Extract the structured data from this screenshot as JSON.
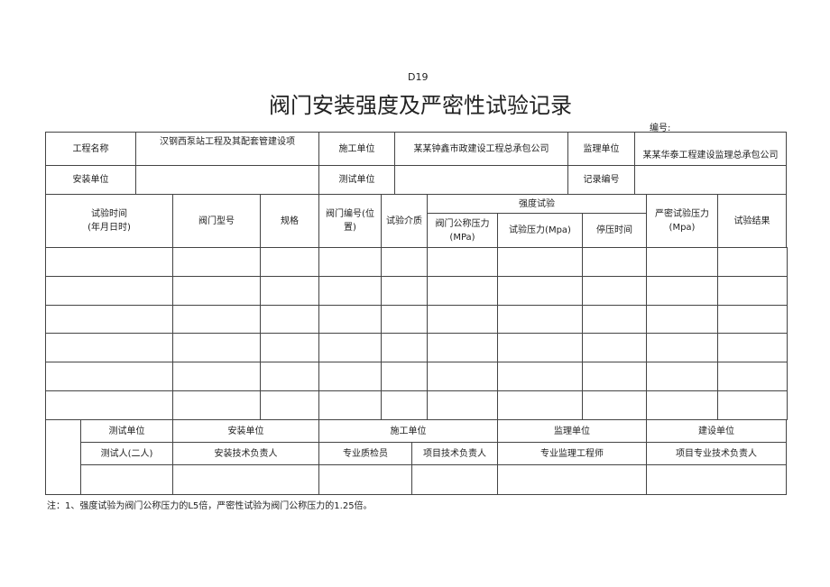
{
  "code": "D19",
  "title": "阀门安装强度及严密性试验记录",
  "number_label": "编号:",
  "info": {
    "project_name_label": "工程名称",
    "project_name": "汉钢西泵站工程及其配套管建设项",
    "construction_unit_label": "施工单位",
    "construction_unit": "某某钟鑫市政建设工程总承包公司",
    "supervision_unit_label": "监理单位",
    "supervision_unit": "某某华泰工程建设监理总承包公司",
    "installation_unit_label": "安装单位",
    "installation_unit": "",
    "testing_unit_label": "测试单位",
    "testing_unit": "",
    "record_no_label": "记录编号",
    "record_no": ""
  },
  "headers": {
    "test_time": "试验时间",
    "test_time_sub": "(年月日时)",
    "valve_model": "阀门型号",
    "spec": "规格",
    "valve_no": "阀门编号(位置)",
    "medium": "试验介质",
    "strength_test": "强度试验",
    "nominal_pressure": "阀门公称压力",
    "nominal_pressure_unit": "(MPa)",
    "test_pressure": "试验压力(Mpa)",
    "hold_time": "停压时间",
    "tightness_pressure": "严密试验压力",
    "tightness_pressure_unit": "(Mpa)",
    "result": "试验结果"
  },
  "rows": [
    [],
    [],
    [],
    [],
    [],
    []
  ],
  "signatures": {
    "units": [
      "测试单位",
      "安装单位",
      "施工单位",
      "监理单位",
      "建设单位"
    ],
    "roles": [
      "测试人(二人)",
      "安装技术负责人",
      "专业质检员",
      "项目技术负责人",
      "专业监理工程师",
      "项目专业技术负责人"
    ]
  },
  "note": "注：1、强度试验为阀门公称压力的L5倍，严密性试验为阀门公称压力的1.25倍。"
}
